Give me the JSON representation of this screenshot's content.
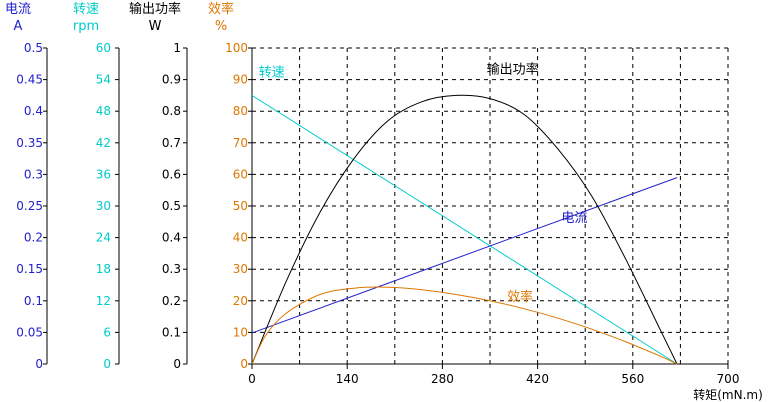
{
  "chart_data": {
    "type": "line",
    "x": {
      "label": "转矩(mN.m)",
      "ticks": [
        0,
        140,
        280,
        420,
        560,
        700
      ],
      "range": [
        0,
        700
      ]
    },
    "y_axes": [
      {
        "name": "电流",
        "unit": "A",
        "color": "#2222cc",
        "range": [
          0,
          0.5
        ],
        "tick_labels": [
          "0",
          "0.05",
          "0.1",
          "0.15",
          "0.2",
          "0.25",
          "0.3",
          "0.35",
          "0.4",
          "0.45",
          "0.5"
        ]
      },
      {
        "name": "转速",
        "unit": "rpm",
        "color": "#00cccc",
        "range": [
          0,
          60
        ],
        "tick_labels": [
          "0",
          "6",
          "12",
          "18",
          "24",
          "30",
          "36",
          "42",
          "48",
          "54",
          "60"
        ]
      },
      {
        "name": "输出功率",
        "unit": "W",
        "color": "#000000",
        "range": [
          0,
          1
        ],
        "tick_labels": [
          "0",
          "0.1",
          "0.2",
          "0.3",
          "0.4",
          "0.5",
          "0.6",
          "0.7",
          "0.8",
          "0.9",
          "1"
        ]
      },
      {
        "name": "效率",
        "unit": "%",
        "color": "#dd7700",
        "range": [
          0,
          100
        ],
        "tick_labels": [
          "0",
          "10",
          "20",
          "30",
          "40",
          "50",
          "60",
          "70",
          "80",
          "90",
          "100"
        ]
      }
    ],
    "grid": true,
    "series": [
      {
        "name": "转速",
        "axis": 1,
        "color": "#00cccc",
        "points": [
          [
            0,
            51
          ],
          [
            625,
            0
          ]
        ]
      },
      {
        "name": "电流",
        "axis": 0,
        "color": "#2222cc",
        "points": [
          [
            0,
            0.049
          ],
          [
            625,
            0.295
          ]
        ]
      },
      {
        "name": "输出功率",
        "axis": 2,
        "color": "#000000",
        "points": [
          [
            0,
            0
          ],
          [
            50,
            0.26
          ],
          [
            100,
            0.48
          ],
          [
            150,
            0.65
          ],
          [
            200,
            0.77
          ],
          [
            250,
            0.83
          ],
          [
            300,
            0.85
          ],
          [
            350,
            0.84
          ],
          [
            400,
            0.79
          ],
          [
            450,
            0.68
          ],
          [
            500,
            0.53
          ],
          [
            550,
            0.33
          ],
          [
            600,
            0.11
          ],
          [
            625,
            0
          ]
        ]
      },
      {
        "name": "效率",
        "axis": 3,
        "color": "#dd7700",
        "points": [
          [
            0,
            0
          ],
          [
            20,
            9
          ],
          [
            50,
            16
          ],
          [
            100,
            22
          ],
          [
            150,
            24
          ],
          [
            200,
            24.3
          ],
          [
            250,
            23.5
          ],
          [
            300,
            22
          ],
          [
            350,
            20
          ],
          [
            400,
            17.5
          ],
          [
            450,
            14.5
          ],
          [
            500,
            11
          ],
          [
            550,
            7
          ],
          [
            600,
            2.5
          ],
          [
            625,
            0
          ]
        ]
      }
    ],
    "annotations": [
      {
        "text": "转速",
        "x": 10,
        "y": 91,
        "color": "#00cccc"
      },
      {
        "text": "输出功率",
        "x": 345,
        "y": 92,
        "color": "#000000"
      },
      {
        "text": "电流",
        "x": 455,
        "y": 45,
        "color": "#2222cc"
      },
      {
        "text": "效率",
        "x": 375,
        "y": 20,
        "color": "#dd7700"
      }
    ]
  }
}
